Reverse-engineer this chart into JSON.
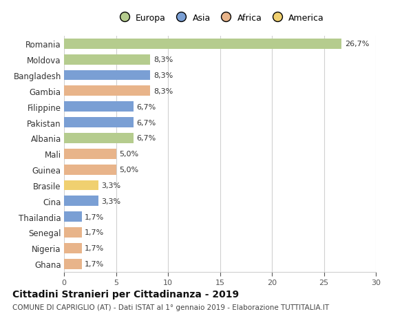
{
  "countries": [
    "Romania",
    "Moldova",
    "Bangladesh",
    "Gambia",
    "Filippine",
    "Pakistan",
    "Albania",
    "Mali",
    "Guinea",
    "Brasile",
    "Cina",
    "Thailandia",
    "Senegal",
    "Nigeria",
    "Ghana"
  ],
  "values": [
    26.7,
    8.3,
    8.3,
    8.3,
    6.7,
    6.7,
    6.7,
    5.0,
    5.0,
    3.3,
    3.3,
    1.7,
    1.7,
    1.7,
    1.7
  ],
  "labels": [
    "26,7%",
    "8,3%",
    "8,3%",
    "8,3%",
    "6,7%",
    "6,7%",
    "6,7%",
    "5,0%",
    "5,0%",
    "3,3%",
    "3,3%",
    "1,7%",
    "1,7%",
    "1,7%",
    "1,7%"
  ],
  "continents": [
    "Europa",
    "Europa",
    "Asia",
    "Africa",
    "Asia",
    "Asia",
    "Europa",
    "Africa",
    "Africa",
    "America",
    "Asia",
    "Asia",
    "Africa",
    "Africa",
    "Africa"
  ],
  "colors": {
    "Europa": "#b5cc8e",
    "Asia": "#7a9fd4",
    "Africa": "#e8b48a",
    "America": "#f0d070"
  },
  "xlim": [
    0,
    30
  ],
  "xticks": [
    0,
    5,
    10,
    15,
    20,
    25,
    30
  ],
  "title": "Cittadini Stranieri per Cittadinanza - 2019",
  "subtitle": "COMUNE DI CAPRIGLIO (AT) - Dati ISTAT al 1° gennaio 2019 - Elaborazione TUTTITALIA.IT",
  "background_color": "#ffffff",
  "grid_color": "#d0d0d0"
}
